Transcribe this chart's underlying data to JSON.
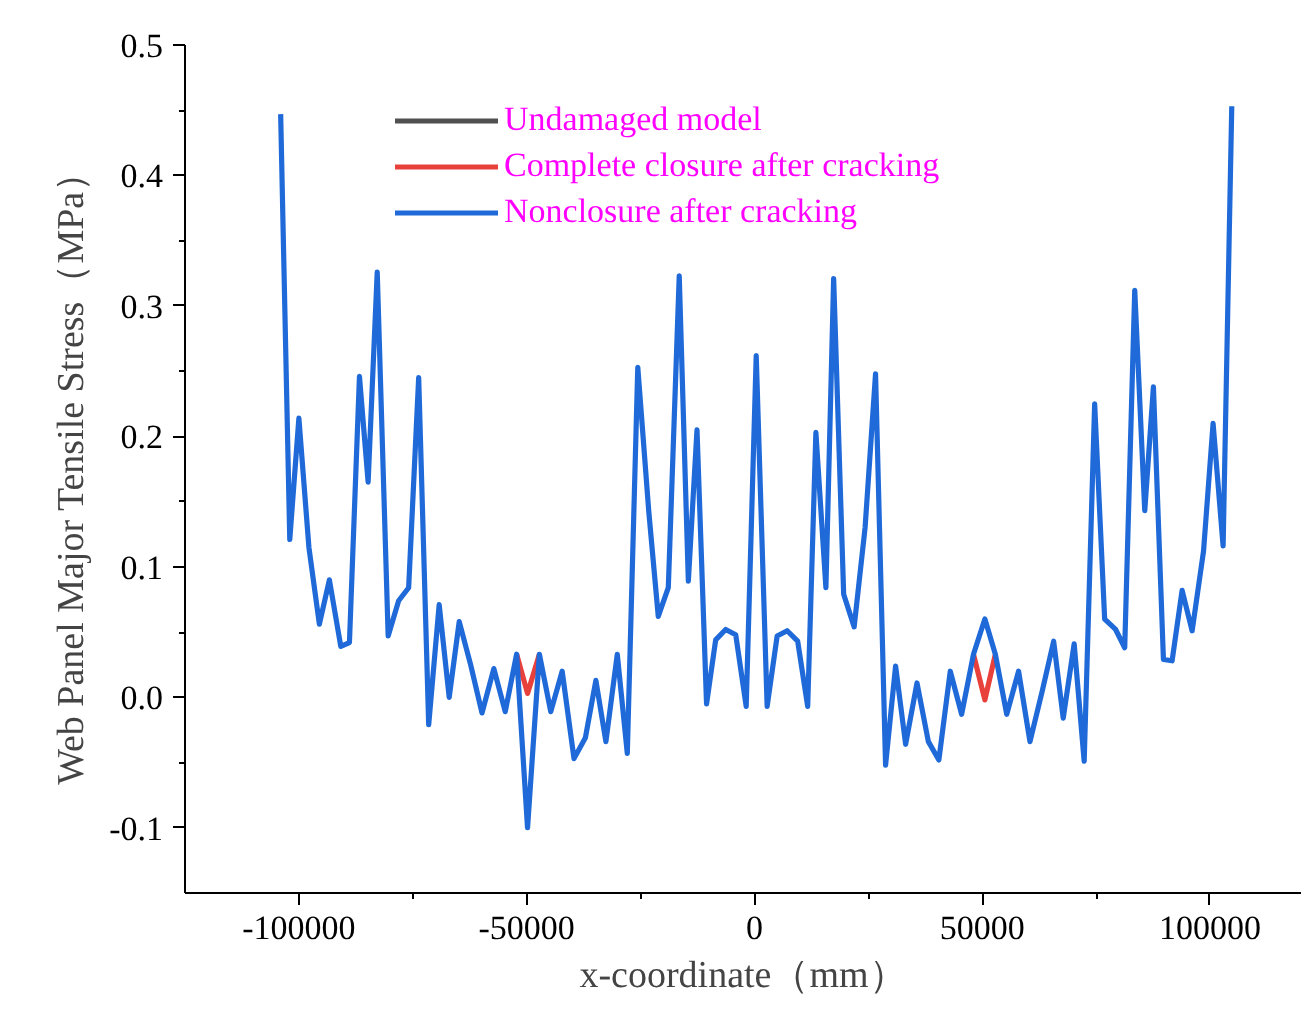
{
  "chart_data": {
    "type": "line",
    "xlabel": "x-coordinate（mm）",
    "ylabel": "Web Panel Major Tensile Stress（MPa）",
    "xlim": [
      -125000,
      120000
    ],
    "xticks": [
      -100000,
      -50000,
      0,
      50000,
      100000
    ],
    "ylim": [
      -0.15,
      0.5
    ],
    "yticks": [
      {
        "value": -0.1,
        "label": "-0.1"
      },
      {
        "value": 0,
        "label": "0.0"
      },
      {
        "value": 0.1,
        "label": "0.1"
      },
      {
        "value": 0.2,
        "label": "0.2"
      },
      {
        "value": 0.3,
        "label": "0.3"
      },
      {
        "value": 0.4,
        "label": "0.4"
      },
      {
        "value": 0.5,
        "label": "0.5"
      }
    ],
    "x": [
      -104000,
      -102000,
      -100000,
      -97800,
      -95500,
      -93300,
      -90800,
      -88900,
      -86700,
      -84800,
      -82800,
      -80400,
      -78100,
      -75900,
      -73700,
      -71500,
      -69200,
      -67000,
      -64800,
      -62300,
      -59800,
      -57200,
      -54700,
      -52200,
      -49800,
      -47200,
      -44700,
      -42200,
      -39600,
      -37100,
      -34800,
      -32600,
      -30100,
      -27900,
      -25600,
      -23200,
      -21100,
      -18900,
      -16500,
      -14500,
      -12600,
      -10500,
      -8500,
      -6300,
      -4100,
      -1800,
      400,
      2800,
      5000,
      7200,
      9500,
      11700,
      13500,
      15700,
      17400,
      19600,
      21900,
      24300,
      26600,
      28800,
      31000,
      33200,
      35700,
      38200,
      40500,
      43000,
      45500,
      48100,
      50600,
      52900,
      55400,
      58000,
      60500,
      63200,
      65700,
      67800,
      70200,
      72400,
      74700,
      76900,
      79300,
      81300,
      83500,
      85700,
      87600,
      89800,
      91700,
      93900,
      96100,
      98600,
      100700,
      102900,
      104800
    ],
    "series": [
      {
        "name": "Undamaged model",
        "color": "#505050",
        "values": [
          null,
          null,
          null,
          null,
          null,
          null,
          null,
          null,
          null,
          null,
          null,
          null,
          null,
          null,
          null,
          null,
          null,
          null,
          null,
          null,
          null,
          null,
          null,
          null,
          null,
          null,
          null,
          null,
          null,
          null,
          null,
          null,
          null,
          null,
          null,
          null,
          null,
          null,
          null,
          null,
          null,
          null,
          null,
          null,
          null,
          null,
          null,
          null,
          null,
          null,
          null,
          null,
          null,
          null,
          null,
          null,
          null,
          null,
          null,
          null,
          null,
          null,
          null,
          null,
          null,
          null,
          null,
          null,
          null,
          null,
          null,
          null,
          null,
          null,
          null,
          null,
          null,
          null,
          null,
          null,
          null,
          null,
          null,
          null,
          null,
          null,
          null,
          null,
          null,
          null,
          null,
          null,
          null
        ]
      },
      {
        "name": "Complete closure after cracking",
        "color": "#e8403a",
        "values": [
          null,
          null,
          null,
          null,
          null,
          null,
          null,
          null,
          null,
          null,
          null,
          null,
          null,
          null,
          null,
          null,
          null,
          null,
          null,
          null,
          null,
          null,
          null,
          0.033,
          0.003,
          0.033,
          null,
          null,
          null,
          null,
          null,
          null,
          null,
          null,
          null,
          null,
          null,
          null,
          null,
          null,
          null,
          null,
          null,
          null,
          null,
          null,
          null,
          null,
          null,
          null,
          null,
          null,
          null,
          null,
          null,
          null,
          null,
          null,
          null,
          null,
          null,
          null,
          null,
          null,
          null,
          null,
          null,
          0.033,
          -0.002,
          0.033,
          null,
          null,
          null,
          null,
          null,
          null,
          null,
          null,
          null,
          null,
          null,
          null,
          null,
          null,
          null,
          null,
          null,
          null,
          null,
          null,
          null,
          null,
          null
        ]
      },
      {
        "name": "Nonclosure after cracking",
        "color": "#1f6ad8",
        "values": [
          0.447,
          0.121,
          0.214,
          0.115,
          0.056,
          0.09,
          0.039,
          0.042,
          0.246,
          0.165,
          0.326,
          0.047,
          0.074,
          0.084,
          0.245,
          -0.021,
          0.071,
          0.0,
          0.058,
          0.025,
          -0.012,
          0.022,
          -0.011,
          0.033,
          -0.1,
          0.033,
          -0.011,
          0.02,
          -0.047,
          -0.031,
          0.013,
          -0.034,
          0.033,
          -0.043,
          0.253,
          0.143,
          0.062,
          0.084,
          0.323,
          0.089,
          0.205,
          -0.005,
          0.044,
          0.052,
          0.048,
          -0.007,
          0.262,
          -0.007,
          0.047,
          0.051,
          0.043,
          -0.007,
          0.203,
          0.084,
          0.321,
          0.079,
          0.054,
          0.13,
          0.248,
          -0.052,
          0.024,
          -0.036,
          0.011,
          -0.034,
          -0.048,
          0.02,
          -0.013,
          0.033,
          0.06,
          0.033,
          -0.013,
          0.02,
          -0.034,
          0.005,
          0.043,
          -0.016,
          0.041,
          -0.049,
          0.225,
          0.06,
          0.052,
          0.038,
          0.312,
          0.143,
          0.238,
          0.029,
          0.028,
          0.082,
          0.051,
          0.112,
          0.21,
          0.116,
          0.453
        ]
      }
    ],
    "legend": "top",
    "grid": false,
    "marker": "none",
    "line_style": "solid"
  }
}
